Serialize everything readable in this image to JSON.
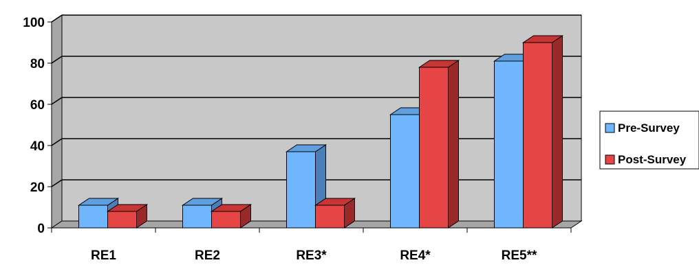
{
  "chart_data": {
    "type": "bar",
    "categories": [
      "RE1",
      "RE2",
      "RE3*",
      "RE4*",
      "RE5**"
    ],
    "series": [
      {
        "name": "Pre-Survey",
        "values": [
          11,
          11,
          37,
          55,
          81
        ]
      },
      {
        "name": "Post-Survey",
        "values": [
          8,
          8,
          11,
          78,
          90
        ]
      }
    ],
    "title": "",
    "xlabel": "",
    "ylabel": "",
    "ylim": [
      0,
      100
    ],
    "yticks": [
      "0",
      "20",
      "40",
      "60",
      "80",
      "100"
    ],
    "grid": true,
    "three_d": true,
    "legend_position": "right",
    "colors": {
      "pre_front": "#6fb6ff",
      "pre_top": "#5f9fe0",
      "pre_side": "#4a7fb8",
      "post_front": "#e64545",
      "post_top": "#c83535",
      "post_side": "#9a2a2a",
      "back_wall": "#c8c8c8",
      "side_wall": "#a6a6a6",
      "floor": "#a6a6a6"
    }
  }
}
